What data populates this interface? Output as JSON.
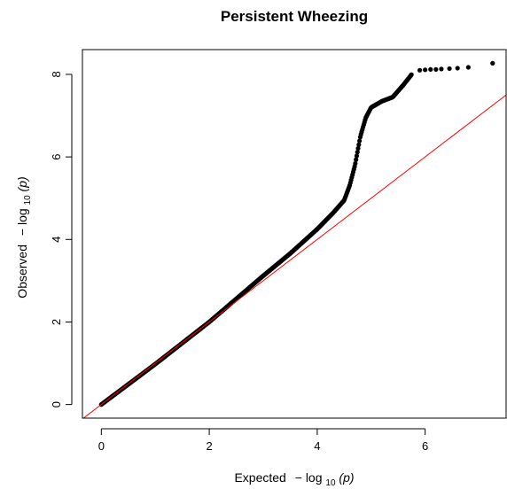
{
  "chart_data": {
    "type": "scatter",
    "title": "Persistent Wheezing",
    "xlabel": {
      "prefix": "Expected",
      "minus": "−",
      "log": "log",
      "sub": "10",
      "arg": "(p)"
    },
    "ylabel": {
      "prefix": "Observed",
      "minus": "−",
      "log": "log",
      "sub": "10",
      "arg": "(p)"
    },
    "xlim": [
      -0.35,
      7.5
    ],
    "ylim": [
      -0.33,
      8.6
    ],
    "xticks": [
      0,
      2,
      4,
      6
    ],
    "yticks": [
      0,
      2,
      4,
      6,
      8
    ],
    "grid": false,
    "colors": {
      "points": "#000000",
      "reference_line": "#ff0000"
    },
    "reference_line": {
      "slope": 1,
      "intercept": 0
    },
    "qq_curve_knots": [
      [
        0.0,
        0.0
      ],
      [
        1.0,
        0.98
      ],
      [
        2.0,
        2.0
      ],
      [
        3.0,
        3.12
      ],
      [
        3.5,
        3.66
      ],
      [
        4.0,
        4.25
      ],
      [
        4.3,
        4.65
      ],
      [
        4.5,
        4.95
      ],
      [
        4.6,
        5.3
      ],
      [
        4.7,
        5.8
      ],
      [
        4.8,
        6.5
      ],
      [
        4.9,
        6.95
      ],
      [
        5.0,
        7.2
      ],
      [
        5.2,
        7.35
      ],
      [
        5.4,
        7.45
      ],
      [
        5.6,
        7.75
      ],
      [
        5.75,
        8.0
      ]
    ],
    "tail_points": [
      [
        5.9,
        8.1
      ],
      [
        6.0,
        8.11
      ],
      [
        6.1,
        8.12
      ],
      [
        6.2,
        8.12
      ],
      [
        6.3,
        8.13
      ],
      [
        6.45,
        8.14
      ],
      [
        6.6,
        8.15
      ],
      [
        6.8,
        8.17
      ],
      [
        7.25,
        8.27
      ]
    ]
  }
}
